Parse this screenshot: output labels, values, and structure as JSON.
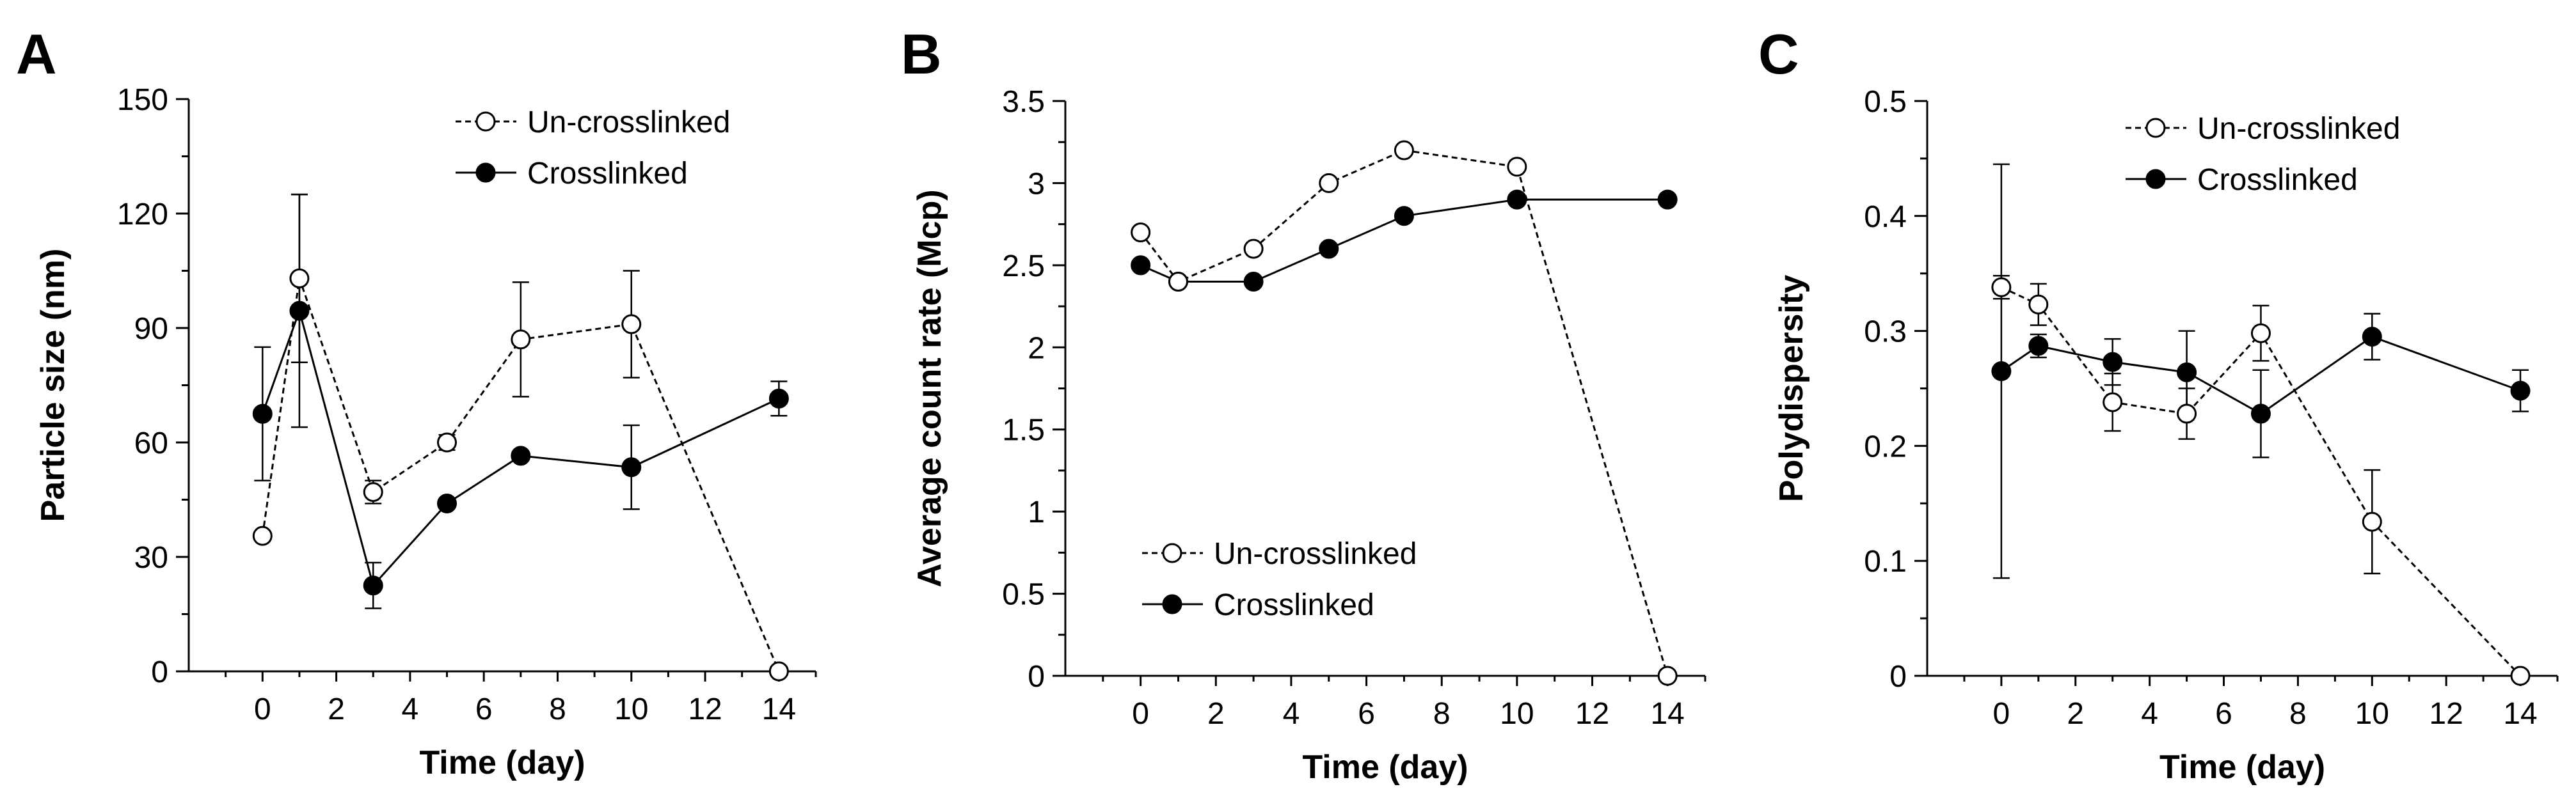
{
  "figure": {
    "panels": [
      "A",
      "B",
      "C"
    ]
  },
  "colors": {
    "background": "#ffffff",
    "ink": "#000000",
    "open_marker_fill": "#ffffff",
    "filled_marker": "#000000"
  },
  "chart_data": [
    {
      "type": "line",
      "panel": "A",
      "title": "",
      "xlabel": "Time (day)",
      "ylabel": "Particle size (nm)",
      "xlim": [
        -2,
        15
      ],
      "ylim": [
        0,
        150
      ],
      "xticks": [
        0,
        2,
        4,
        6,
        8,
        10,
        12,
        14
      ],
      "yticks": [
        0,
        30,
        60,
        90,
        120,
        150
      ],
      "ytick_labels": [
        "0",
        "30",
        "60",
        "90",
        "120",
        "150"
      ],
      "legend_position": "top-right",
      "series": [
        {
          "name": "Un-crosslinked",
          "style": "dashed",
          "marker": "open-circle",
          "x": [
            0,
            1,
            3,
            5,
            7,
            10,
            14
          ],
          "y": [
            35.5,
            103,
            47,
            60,
            87,
            91,
            0
          ],
          "err": [
            0,
            22,
            3,
            2,
            15,
            14,
            0
          ]
        },
        {
          "name": "Crosslinked",
          "style": "solid",
          "marker": "filled-circle",
          "x": [
            0,
            1,
            3,
            5,
            7,
            10,
            14
          ],
          "y": [
            67.5,
            94.5,
            22.5,
            44,
            56.5,
            53.5,
            71.5
          ],
          "err": [
            17.5,
            30.5,
            6,
            0,
            0,
            11,
            4.5
          ]
        }
      ]
    },
    {
      "type": "line",
      "panel": "B",
      "title": "",
      "xlabel": "Time (day)",
      "ylabel": "Average count rate (Mcp)",
      "xlim": [
        -2,
        15
      ],
      "ylim": [
        0,
        3.5
      ],
      "xticks": [
        0,
        2,
        4,
        6,
        8,
        10,
        12,
        14
      ],
      "yticks": [
        0,
        0.5,
        1,
        1.5,
        2,
        2.5,
        3,
        3.5
      ],
      "ytick_labels": [
        "0",
        "0.5",
        "1",
        "1.5",
        "2",
        "2.5",
        "3",
        "3.5"
      ],
      "legend_position": "bottom-left",
      "series": [
        {
          "name": "Un-crosslinked",
          "style": "dashed",
          "marker": "open-circle",
          "x": [
            0,
            1,
            3,
            5,
            7,
            10,
            14
          ],
          "y": [
            2.7,
            2.4,
            2.6,
            3.0,
            3.2,
            3.1,
            0
          ],
          "err": [
            0,
            0,
            0,
            0,
            0,
            0,
            0
          ]
        },
        {
          "name": "Crosslinked",
          "style": "solid",
          "marker": "filled-circle",
          "x": [
            0,
            1,
            3,
            5,
            7,
            10,
            14
          ],
          "y": [
            2.5,
            2.4,
            2.4,
            2.6,
            2.8,
            2.9,
            2.9
          ],
          "err": [
            0,
            0,
            0,
            0,
            0,
            0,
            0
          ]
        }
      ]
    },
    {
      "type": "line",
      "panel": "C",
      "title": "",
      "xlabel": "Time (day)",
      "ylabel": "Polydispersity",
      "xlim": [
        -2,
        15
      ],
      "ylim": [
        0,
        0.5
      ],
      "xticks": [
        0,
        2,
        4,
        6,
        8,
        10,
        12,
        14
      ],
      "yticks": [
        0,
        0.1,
        0.2,
        0.3,
        0.4,
        0.5
      ],
      "ytick_labels": [
        "0",
        "0.1",
        "0.2",
        "0.3",
        "0.4",
        "0.5"
      ],
      "legend_position": "top-right",
      "series": [
        {
          "name": "Un-crosslinked",
          "style": "dashed",
          "marker": "open-circle",
          "x": [
            0,
            1,
            3,
            5,
            7,
            10,
            14
          ],
          "y": [
            0.338,
            0.323,
            0.238,
            0.228,
            0.298,
            0.134,
            0.0
          ],
          "err": [
            0.01,
            0.018,
            0.025,
            0.022,
            0.024,
            0.045,
            0
          ]
        },
        {
          "name": "Crosslinked",
          "style": "solid",
          "marker": "filled-circle",
          "x": [
            0,
            1,
            3,
            5,
            7,
            10,
            14
          ],
          "y": [
            0.265,
            0.287,
            0.273,
            0.264,
            0.228,
            0.295,
            0.248
          ],
          "err": [
            0.18,
            0.01,
            0.02,
            0.036,
            0.038,
            0.02,
            0.018
          ]
        }
      ]
    }
  ]
}
